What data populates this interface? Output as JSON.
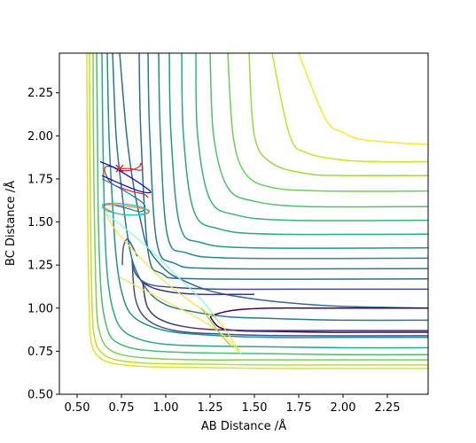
{
  "chart_data": {
    "type": "contour",
    "xlabel": "AB Distance /Å",
    "ylabel": "BC Distance /Å",
    "xlim": [
      0.4,
      2.48
    ],
    "ylim": [
      0.5,
      2.48
    ],
    "x_ticks": [
      "0.50",
      "0.75",
      "1.00",
      "1.25",
      "1.50",
      "1.75",
      "2.00",
      "2.25"
    ],
    "y_ticks": [
      "0.50",
      "0.75",
      "1.00",
      "1.25",
      "1.50",
      "1.75",
      "2.00",
      "2.25"
    ],
    "x_tick_values": [
      0.5,
      0.75,
      1.0,
      1.25,
      1.5,
      1.75,
      2.0,
      2.25
    ],
    "y_tick_values": [
      0.5,
      0.75,
      1.0,
      1.25,
      1.5,
      1.75,
      2.0,
      2.25
    ],
    "colormap": "viridis",
    "colormap_stops": [
      "#440154",
      "#482878",
      "#3e4989",
      "#31688e",
      "#26828e",
      "#1f9e89",
      "#35b779",
      "#6ece58",
      "#b5de2b",
      "#fde725"
    ],
    "contour_lines": [
      {
        "ab": [
          0.74,
          0.78,
          0.82,
          0.86,
          0.9,
          1.0,
          1.1,
          1.25,
          1.45,
          1.7,
          2.0,
          2.48
        ],
        "bc": [
          2.48,
          2.0,
          1.7,
          1.5,
          1.35,
          1.22,
          1.16,
          1.1,
          1.06,
          1.03,
          1.01,
          1.0
        ],
        "level": 0.35
      },
      {
        "ab": [
          0.7,
          0.72,
          0.75,
          0.78,
          0.82,
          0.9,
          1.0,
          1.15,
          1.35,
          1.6,
          2.0,
          2.48
        ],
        "bc": [
          2.48,
          2.0,
          1.7,
          1.45,
          1.25,
          1.1,
          1.02,
          0.98,
          0.95,
          0.94,
          0.93,
          0.93
        ],
        "level": 0.4
      },
      {
        "ab": [
          0.67,
          0.68,
          0.7,
          0.72,
          0.75,
          0.8,
          0.9,
          1.05,
          1.3,
          1.6,
          2.0,
          2.48
        ],
        "bc": [
          2.48,
          2.0,
          1.6,
          1.3,
          1.1,
          0.97,
          0.9,
          0.86,
          0.84,
          0.83,
          0.83,
          0.83
        ],
        "level": 0.5
      },
      {
        "ab": [
          0.64,
          0.645,
          0.655,
          0.67,
          0.7,
          0.75,
          0.85,
          1.0,
          1.25,
          1.6,
          2.0,
          2.48
        ],
        "bc": [
          2.48,
          2.0,
          1.5,
          1.2,
          1.0,
          0.88,
          0.82,
          0.79,
          0.78,
          0.775,
          0.77,
          0.77
        ],
        "level": 0.6
      },
      {
        "ab": [
          0.61,
          0.615,
          0.62,
          0.635,
          0.66,
          0.7,
          0.8,
          0.95,
          1.2,
          1.6,
          2.0,
          2.48
        ],
        "bc": [
          2.48,
          2.0,
          1.5,
          1.1,
          0.92,
          0.82,
          0.77,
          0.75,
          0.74,
          0.735,
          0.73,
          0.73
        ],
        "level": 0.7
      },
      {
        "ab": [
          0.59,
          0.592,
          0.598,
          0.61,
          0.63,
          0.67,
          0.75,
          0.9,
          1.2,
          1.6,
          2.0,
          2.48
        ],
        "bc": [
          2.48,
          2.0,
          1.5,
          1.0,
          0.85,
          0.77,
          0.73,
          0.71,
          0.7,
          0.7,
          0.7,
          0.7
        ],
        "level": 0.8
      },
      {
        "ab": [
          0.57,
          0.572,
          0.576,
          0.585,
          0.6,
          0.64,
          0.72,
          0.9,
          1.2,
          1.6,
          2.0,
          2.48
        ],
        "bc": [
          2.48,
          2.0,
          1.5,
          1.0,
          0.82,
          0.74,
          0.7,
          0.68,
          0.675,
          0.67,
          0.67,
          0.67
        ],
        "level": 0.9
      },
      {
        "ab": [
          0.555,
          0.557,
          0.56,
          0.568,
          0.58,
          0.62,
          0.7,
          0.9,
          1.2,
          1.6,
          2.0,
          2.48
        ],
        "bc": [
          2.48,
          2.0,
          1.5,
          1.0,
          0.8,
          0.72,
          0.68,
          0.66,
          0.655,
          0.65,
          0.65,
          0.65
        ],
        "level": 0.95
      },
      {
        "ab": [
          1.25,
          1.3,
          1.4,
          1.6,
          1.9,
          2.2,
          2.48
        ],
        "bc": [
          0.95,
          0.89,
          0.87,
          0.865,
          0.86,
          0.86,
          0.86
        ],
        "level": 0.0
      },
      {
        "ab": [
          2.48,
          2.2,
          1.9,
          1.6,
          1.4,
          1.3,
          1.25
        ],
        "bc": [
          1.0,
          1.0,
          1.0,
          1.0,
          0.99,
          0.97,
          0.95
        ],
        "level": 0.0
      },
      {
        "ab": [
          1.75,
          1.9,
          2.0,
          2.1,
          2.3,
          2.48
        ],
        "bc": [
          2.48,
          2.1,
          2.02,
          1.98,
          1.96,
          1.95
        ],
        "level": 1.0
      },
      {
        "ab": [
          1.6,
          1.7,
          1.8,
          2.0,
          2.2,
          2.48
        ],
        "bc": [
          2.48,
          2.0,
          1.9,
          1.86,
          1.85,
          1.85
        ],
        "level": 0.92
      },
      {
        "ab": [
          1.47,
          1.5,
          1.6,
          1.8,
          2.0,
          2.48
        ],
        "bc": [
          2.48,
          2.0,
          1.84,
          1.78,
          1.77,
          1.77
        ],
        "level": 0.85
      },
      {
        "ab": [
          1.35,
          1.38,
          1.45,
          1.6,
          1.9,
          2.48
        ],
        "bc": [
          2.48,
          2.0,
          1.78,
          1.7,
          1.68,
          1.68
        ],
        "level": 0.78
      },
      {
        "ab": [
          1.25,
          1.27,
          1.35,
          1.5,
          1.8,
          2.48
        ],
        "bc": [
          2.48,
          2.0,
          1.7,
          1.62,
          1.59,
          1.59
        ],
        "level": 0.72
      },
      {
        "ab": [
          1.17,
          1.18,
          1.25,
          1.4,
          1.7,
          2.48
        ],
        "bc": [
          2.48,
          2.0,
          1.63,
          1.54,
          1.51,
          1.51
        ],
        "level": 0.66
      },
      {
        "ab": [
          1.09,
          1.1,
          1.16,
          1.3,
          1.6,
          2.48
        ],
        "bc": [
          2.48,
          2.0,
          1.56,
          1.46,
          1.43,
          1.43
        ],
        "level": 0.6
      },
      {
        "ab": [
          1.02,
          1.03,
          1.08,
          1.2,
          1.5,
          2.48
        ],
        "bc": [
          2.48,
          2.0,
          1.48,
          1.38,
          1.35,
          1.35
        ],
        "level": 0.54
      },
      {
        "ab": [
          0.96,
          0.97,
          1.01,
          1.12,
          1.4,
          2.48
        ],
        "bc": [
          2.48,
          2.0,
          1.42,
          1.32,
          1.29,
          1.29
        ],
        "level": 0.48
      },
      {
        "ab": [
          0.9,
          0.91,
          0.95,
          1.05,
          1.3,
          2.48
        ],
        "bc": [
          2.48,
          2.0,
          1.38,
          1.26,
          1.23,
          1.23
        ],
        "level": 0.42
      },
      {
        "ab": [
          0.85,
          0.86,
          0.9,
          0.98,
          1.2,
          2.48
        ],
        "bc": [
          2.48,
          2.0,
          1.33,
          1.2,
          1.17,
          1.17
        ],
        "level": 0.36
      },
      {
        "ab": [
          0.87,
          0.9,
          1.0,
          1.2,
          1.5,
          2.0,
          2.48
        ],
        "bc": [
          1.15,
          1.0,
          0.92,
          0.88,
          0.87,
          0.87,
          0.87
        ],
        "level": 0.15
      },
      {
        "ab": [
          1.5,
          1.4,
          1.2,
          1.05,
          0.95,
          0.9,
          0.87
        ],
        "bc": [
          1.08,
          1.08,
          1.08,
          1.09,
          1.11,
          1.13,
          1.15
        ],
        "level": 0.15
      },
      {
        "ab": [
          0.81,
          0.83,
          0.9,
          1.05,
          1.3,
          1.7,
          2.48
        ],
        "bc": [
          1.28,
          1.05,
          0.93,
          0.87,
          0.85,
          0.84,
          0.84
        ],
        "level": 0.25
      },
      {
        "ab": [
          2.48,
          1.7,
          1.3,
          1.05,
          0.9,
          0.83,
          0.81
        ],
        "bc": [
          1.11,
          1.11,
          1.11,
          1.12,
          1.14,
          1.2,
          1.28
        ],
        "level": 0.25
      },
      {
        "ab": [
          0.755,
          0.76,
          0.78,
          0.8,
          0.84
        ],
        "bc": [
          1.25,
          1.35,
          1.4,
          1.38,
          1.3
        ],
        "level": 0.3
      }
    ],
    "trajectories": [
      {
        "color": "#d62728",
        "ab": [
          0.72,
          0.75,
          0.8,
          0.85,
          0.87,
          0.86,
          0.85,
          0.8,
          0.75,
          0.7,
          0.66,
          0.66,
          0.7,
          0.8,
          0.88,
          0.9
        ],
        "bc": [
          1.81,
          1.81,
          1.81,
          1.8,
          1.81,
          1.84,
          1.82,
          1.8,
          1.8,
          1.82,
          1.82,
          1.78,
          1.72,
          1.68,
          1.66,
          1.64
        ]
      },
      {
        "color": "#0000cd",
        "ab": [
          0.63,
          0.7,
          0.8,
          0.9,
          0.91,
          0.85,
          0.75,
          0.66,
          0.64
        ],
        "bc": [
          1.85,
          1.82,
          1.76,
          1.69,
          1.67,
          1.68,
          1.72,
          1.76,
          1.77
        ]
      },
      {
        "color": "#1f77b4",
        "ab": [
          0.64,
          0.7,
          0.8,
          0.88,
          0.86,
          0.78,
          0.7,
          0.66,
          0.65
        ],
        "bc": [
          1.75,
          1.72,
          1.66,
          1.6,
          1.56,
          1.58,
          1.6,
          1.6,
          1.58
        ]
      },
      {
        "color": "#ff7f0e",
        "ab": [
          0.66,
          0.72,
          0.8,
          0.9,
          0.89,
          0.8,
          0.72,
          0.66,
          0.64
        ],
        "bc": [
          1.6,
          1.6,
          1.59,
          1.57,
          1.55,
          1.54,
          1.55,
          1.58,
          1.6
        ]
      },
      {
        "color": "#00ced1",
        "ab": [
          0.64,
          0.7,
          0.8,
          0.88,
          0.9,
          0.82,
          0.72,
          0.66,
          0.64
        ],
        "bc": [
          1.6,
          1.61,
          1.6,
          1.58,
          1.55,
          1.54,
          1.55,
          1.57,
          1.59
        ]
      },
      {
        "color": "#f0e442",
        "ab": [
          0.66,
          0.72,
          0.85,
          1.0,
          1.15,
          1.3,
          1.42,
          1.35,
          1.25,
          1.15,
          1.0,
          0.85,
          0.74
        ],
        "bc": [
          1.55,
          1.45,
          1.3,
          1.15,
          1.03,
          0.92,
          0.74,
          0.82,
          0.9,
          0.96,
          1.04,
          1.12,
          1.18
        ]
      },
      {
        "color": "#7fffd4",
        "ab": [
          0.66,
          0.75,
          0.9,
          1.05,
          1.2,
          1.3
        ],
        "bc": [
          1.55,
          1.48,
          1.35,
          1.2,
          1.05,
          0.92
        ]
      },
      {
        "color": "#9acd32",
        "ab": [
          1.2,
          1.25,
          1.3,
          1.35,
          1.38
        ],
        "bc": [
          1.0,
          0.93,
          0.86,
          0.8,
          0.77
        ]
      }
    ],
    "endpoint_marker": {
      "ab": 0.74,
      "bc": 1.81,
      "symbol": "x",
      "color": "#d62728"
    }
  }
}
